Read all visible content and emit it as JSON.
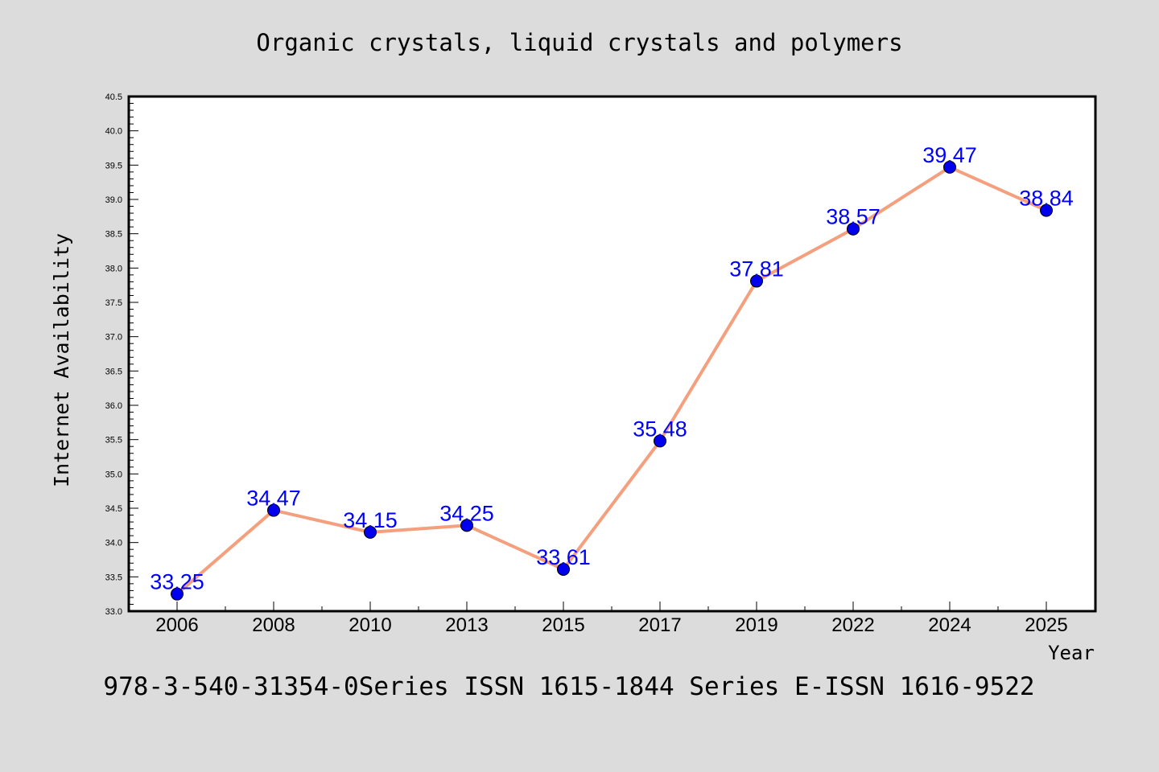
{
  "chart_data": {
    "type": "line",
    "title": "Organic crystals, liquid crystals and polymers",
    "xlabel": "Year",
    "ylabel": "Internet Availability",
    "footer": "978-3-540-31354-0Series ISSN 1615-1844 Series E-ISSN 1616-9522",
    "categories": [
      "2006",
      "2008",
      "2010",
      "2013",
      "2015",
      "2017",
      "2019",
      "2022",
      "2024",
      "2025"
    ],
    "values": [
      33.25,
      34.47,
      34.15,
      34.25,
      33.61,
      35.48,
      37.81,
      38.57,
      39.47,
      38.84
    ],
    "data_labels": [
      "33.25",
      "34.47",
      "34.15",
      "34.25",
      "33.61",
      "35.48",
      "37.81",
      "38.57",
      "39.47",
      "38.84"
    ],
    "ylim": [
      33.0,
      40.5
    ],
    "yticks": [
      "33.0",
      "33.5",
      "34.0",
      "34.5",
      "35.0",
      "35.5",
      "36.0",
      "36.5",
      "37.0",
      "37.5",
      "38.0",
      "38.5",
      "39.0",
      "39.5",
      "40.0",
      "40.5"
    ],
    "grid": false,
    "colors": {
      "line": "#f4a07f",
      "marker": "#0000ee",
      "label": "#0000ff",
      "background": "#dcdcdc",
      "plot_bg": "#ffffff"
    }
  }
}
